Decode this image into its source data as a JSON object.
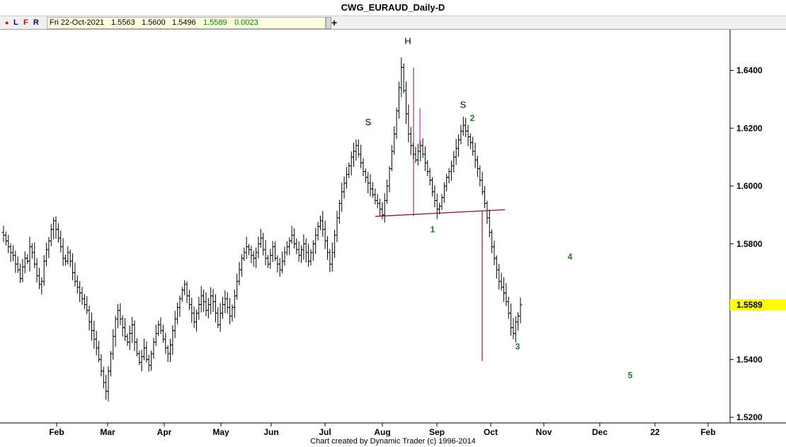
{
  "window_title": "CWG_EURAUD_Daily-D",
  "toolbar": {
    "dot": "●",
    "l_label": "L",
    "f_label": "F",
    "r_label": "R",
    "plus_label": "+"
  },
  "info_bar": {
    "date": "Fri 22-Oct-2021",
    "open": "1.5563",
    "high": "1.5600",
    "low": "1.5496",
    "close": "1.5589",
    "change": "0.0023"
  },
  "footer": "Chart created by Dynamic Trader  (c) 1996-2014",
  "colors": {
    "price_bar": "#000000",
    "neckline": "#7a1a2a",
    "measure_line": "#8b1a3a",
    "pink_bar": "#cc44cc",
    "wave_label": "#1a7a1a",
    "last_price_bg": "#ffff00"
  },
  "chart_data": {
    "type": "ohlc",
    "y_ticks": [
      "1.6400",
      "1.6200",
      "1.6000",
      "1.5800",
      "1.5400",
      "1.5200"
    ],
    "ylim": [
      1.515,
      1.655
    ],
    "last_price": "1.5589",
    "x_ticks": [
      "Feb",
      "Mar",
      "Apr",
      "May",
      "Jun",
      "Jul",
      "Aug",
      "Sep",
      "Oct",
      "Nov",
      "Dec",
      "22",
      "Feb"
    ],
    "pattern_labels": [
      "S",
      "H",
      "S"
    ],
    "wave_labels": [
      "1",
      "2",
      "3",
      "4",
      "5"
    ],
    "neckline": {
      "from": [
        "Aug",
        1.5895
      ],
      "to": [
        "Oct",
        1.5918
      ]
    },
    "closes": [
      1.583,
      1.581,
      1.579,
      1.577,
      1.576,
      1.573,
      1.571,
      1.568,
      1.572,
      1.575,
      1.574,
      1.579,
      1.577,
      1.573,
      1.569,
      1.566,
      1.567,
      1.574,
      1.578,
      1.581,
      1.585,
      1.588,
      1.585,
      1.582,
      1.579,
      1.575,
      1.574,
      1.577,
      1.574,
      1.57,
      1.567,
      1.565,
      1.563,
      1.561,
      1.559,
      1.557,
      1.553,
      1.55,
      1.547,
      1.544,
      1.54,
      1.536,
      1.532,
      1.529,
      1.536,
      1.542,
      1.548,
      1.554,
      1.557,
      1.554,
      1.551,
      1.548,
      1.546,
      1.549,
      1.552,
      1.546,
      1.542,
      1.539,
      1.541,
      1.544,
      1.54,
      1.538,
      1.542,
      1.546,
      1.549,
      1.552,
      1.55,
      1.547,
      1.544,
      1.542,
      1.545,
      1.55,
      1.554,
      1.558,
      1.561,
      1.564,
      1.566,
      1.562,
      1.559,
      1.556,
      1.553,
      1.556,
      1.559,
      1.562,
      1.56,
      1.557,
      1.559,
      1.562,
      1.56,
      1.556,
      1.552,
      1.556,
      1.559,
      1.561,
      1.558,
      1.555,
      1.558,
      1.562,
      1.567,
      1.571,
      1.575,
      1.577,
      1.579,
      1.578,
      1.576,
      1.575,
      1.577,
      1.58,
      1.582,
      1.578,
      1.575,
      1.573,
      1.576,
      1.579,
      1.575,
      1.573,
      1.571,
      1.574,
      1.577,
      1.579,
      1.581,
      1.583,
      1.58,
      1.578,
      1.576,
      1.578,
      1.58,
      1.577,
      1.574,
      1.577,
      1.58,
      1.583,
      1.586,
      1.588,
      1.585,
      1.581,
      1.577,
      1.573,
      1.577,
      1.583,
      1.589,
      1.594,
      1.598,
      1.601,
      1.604,
      1.607,
      1.61,
      1.612,
      1.614,
      1.611,
      1.608,
      1.605,
      1.603,
      1.601,
      1.599,
      1.597,
      1.595,
      1.594,
      1.592,
      1.59,
      1.595,
      1.6,
      1.606,
      1.612,
      1.618,
      1.626,
      1.634,
      1.641,
      1.633,
      1.625,
      1.618,
      1.614,
      1.611,
      1.609,
      1.612,
      1.614,
      1.611,
      1.608,
      1.605,
      1.602,
      1.598,
      1.595,
      1.592,
      1.593,
      1.596,
      1.6,
      1.603,
      1.605,
      1.607,
      1.61,
      1.613,
      1.616,
      1.619,
      1.621,
      1.619,
      1.617,
      1.615,
      1.612,
      1.609,
      1.606,
      1.602,
      1.598,
      1.594,
      1.589,
      1.584,
      1.579,
      1.575,
      1.571,
      1.567,
      1.565,
      1.563,
      1.56,
      1.556,
      1.551,
      1.549,
      1.553,
      1.555,
      1.5589
    ],
    "annotation_values": {
      "S_left": 1.617,
      "H": 1.642,
      "S_right": 1.623,
      "wave1": 1.5895,
      "wave2": 1.6225,
      "wave3": 1.5455,
      "wave4_month": "Nov",
      "wave4": 1.5755,
      "wave5_month": "Dec",
      "wave5": 1.5345,
      "measure_top": 1.5915,
      "measure_bottom": 1.5395
    }
  }
}
